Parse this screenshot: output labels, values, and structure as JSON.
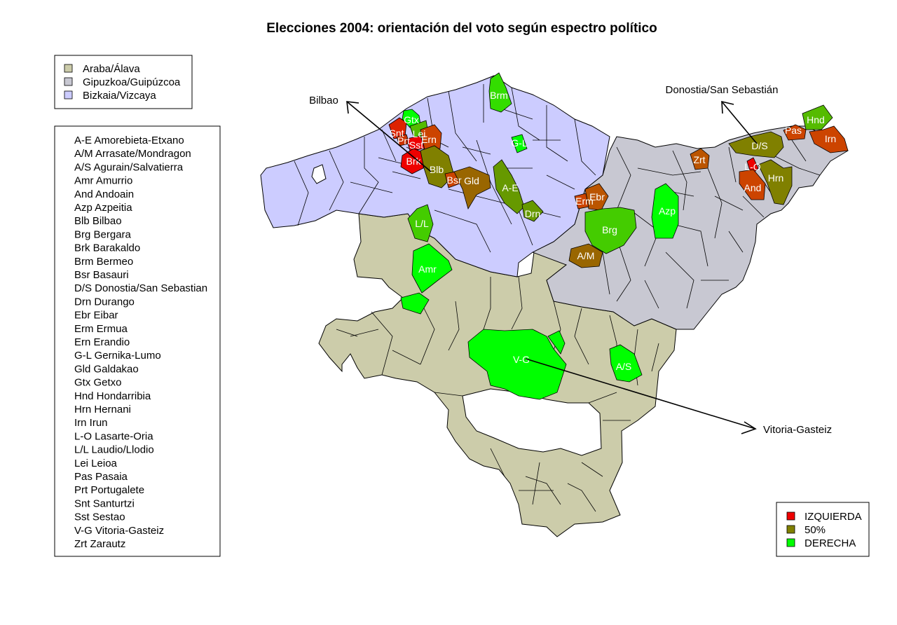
{
  "title": "Elecciones 2004: orientación del voto según espectro político",
  "colors": {
    "alava": "#ccccaa",
    "gipuzkoa": "#c8c8d2",
    "bizkaia": "#ccccff",
    "izquierda": "#ee0000",
    "izq_mid": "#cc4400",
    "mid": "#808000",
    "der_mid": "#55bb00",
    "derecha": "#00ff00"
  },
  "province_legend": [
    {
      "label": "Araba/Álava",
      "color": "#ccccaa"
    },
    {
      "label": "Gipuzkoa/Guipúzcoa",
      "color": "#c8c8d2"
    },
    {
      "label": "Bizkaia/Vizcaya",
      "color": "#ccccff"
    }
  ],
  "muni_legend": [
    "A-E Amorebieta-Etxano",
    "A/M Arrasate/Mondragon",
    "A/S Agurain/Salvatierra",
    "Amr Amurrio",
    "And Andoain",
    "Azp Azpeitia",
    "Blb Bilbao",
    "Brg Bergara",
    "Brk Barakaldo",
    "Brm Bermeo",
    "Bsr Basauri",
    "D/S Donostia/San Sebastian",
    "Drn Durango",
    "Ebr Eibar",
    "Erm Ermua",
    "Ern Erandio",
    "G-L Gernika-Lumo",
    "Gld Galdakao",
    "Gtx Getxo",
    "Hnd Hondarribia",
    "Hrn Hernani",
    "Irn Irun",
    "L-O Lasarte-Oria",
    "L/L Laudio/Llodio",
    "Lei Leioa",
    "Pas Pasaia",
    "Prt Portugalete",
    "Snt Santurtzi",
    "Sst Sestao",
    "V-G Vitoria-Gasteiz",
    "Zrt Zarautz"
  ],
  "vote_legend": [
    {
      "label": "IZQUIERDA",
      "color": "#ee0000"
    },
    {
      "label": "50%",
      "color": "#808000"
    },
    {
      "label": "DERECHA",
      "color": "#00ff00"
    }
  ],
  "cities": {
    "bilbao": "Bilbao",
    "donostia": "Donostia/San Sebastián",
    "vitoria": "Vitoria-Gasteiz"
  },
  "municipalities": [
    {
      "code": "Brm",
      "fill": "#33dd00"
    },
    {
      "code": "Gtx",
      "fill": "#00ff00"
    },
    {
      "code": "Snt",
      "fill": "#dd2200"
    },
    {
      "code": "Prt",
      "fill": "#cc3300"
    },
    {
      "code": "Lei",
      "fill": "#55bb00"
    },
    {
      "code": "Sst",
      "fill": "#ee0000"
    },
    {
      "code": "Ern",
      "fill": "#cc4400"
    },
    {
      "code": "Brk",
      "fill": "#ee0000"
    },
    {
      "code": "Blb",
      "fill": "#808000"
    },
    {
      "code": "Bsr",
      "fill": "#cc4400"
    },
    {
      "code": "Gld",
      "fill": "#996600"
    },
    {
      "code": "G-L",
      "fill": "#00ff00"
    },
    {
      "code": "A-E",
      "fill": "#669900"
    },
    {
      "code": "Drn",
      "fill": "#669900"
    },
    {
      "code": "L/L",
      "fill": "#44cc00"
    },
    {
      "code": "Amr",
      "fill": "#00ff00"
    },
    {
      "code": "Ebr",
      "fill": "#bb5500"
    },
    {
      "code": "Erm",
      "fill": "#cc4400"
    },
    {
      "code": "Brg",
      "fill": "#44cc00"
    },
    {
      "code": "Azp",
      "fill": "#00ff00"
    },
    {
      "code": "A/M",
      "fill": "#996600"
    },
    {
      "code": "Zrt",
      "fill": "#bb5500"
    },
    {
      "code": "D/S",
      "fill": "#808000"
    },
    {
      "code": "Pas",
      "fill": "#cc4400"
    },
    {
      "code": "Hnd",
      "fill": "#55bb00"
    },
    {
      "code": "Irn",
      "fill": "#cc4400"
    },
    {
      "code": "L-O",
      "fill": "#ee0000"
    },
    {
      "code": "And",
      "fill": "#cc4400"
    },
    {
      "code": "Hrn",
      "fill": "#808000"
    },
    {
      "code": "V-G",
      "fill": "#00ff00"
    },
    {
      "code": "A/S",
      "fill": "#00ff00"
    }
  ]
}
